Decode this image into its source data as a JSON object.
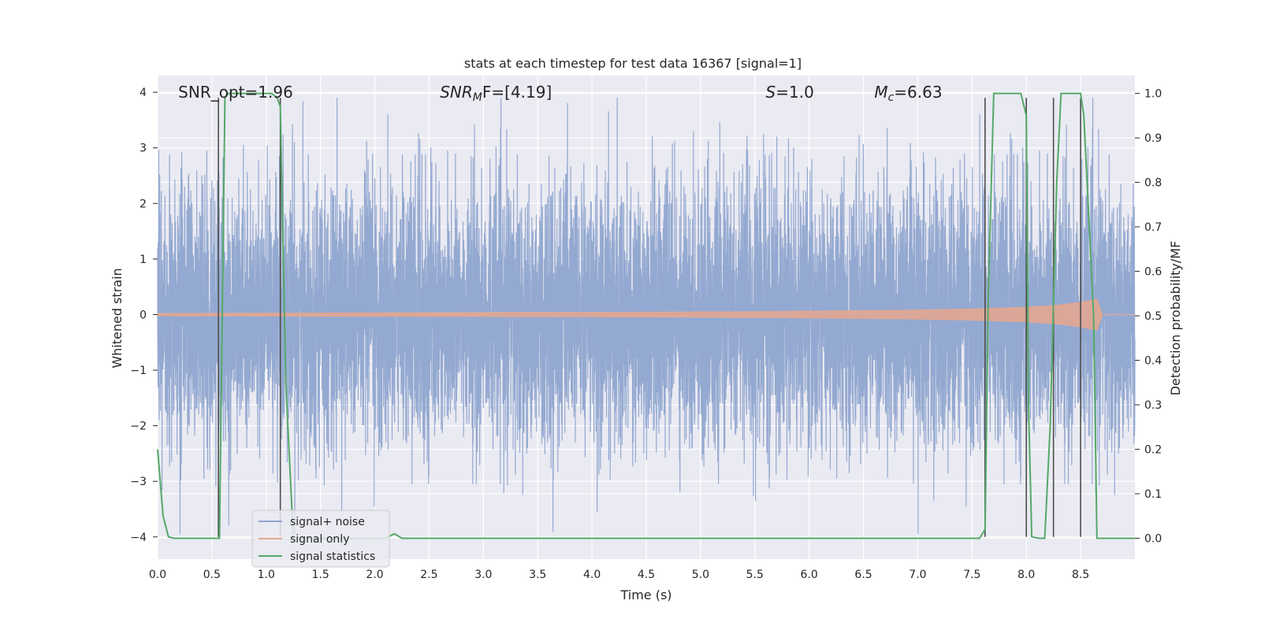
{
  "chart_data": {
    "type": "line",
    "title": "stats at each timestep for test data 16367 [signal=1]",
    "xlabel": "Time (s)",
    "ylabel": "Whitened strain",
    "ylabel_right": "Detection probability/MF",
    "xlim": [
      0.0,
      9.0
    ],
    "ylim": [
      -4.4,
      4.3
    ],
    "ylim_right": [
      -0.047,
      1.04
    ],
    "x_ticks": [
      0.0,
      0.5,
      1.0,
      1.5,
      2.0,
      2.5,
      3.0,
      3.5,
      4.0,
      4.5,
      5.0,
      5.5,
      6.0,
      6.5,
      7.0,
      7.5,
      8.0,
      8.5
    ],
    "x_tick_labels": [
      "0.0",
      "0.5",
      "1.0",
      "1.5",
      "2.0",
      "2.5",
      "3.0",
      "3.5",
      "4.0",
      "4.5",
      "5.0",
      "5.5",
      "6.0",
      "6.5",
      "7.0",
      "7.5",
      "8.0",
      "8.5"
    ],
    "y_ticks": [
      -4,
      -3,
      -2,
      -1,
      0,
      1,
      2,
      3,
      4
    ],
    "y_tick_labels": [
      "−4",
      "−3",
      "−2",
      "−1",
      "0",
      "1",
      "2",
      "3",
      "4"
    ],
    "y_ticks_right": [
      0.0,
      0.1,
      0.2,
      0.3,
      0.4,
      0.5,
      0.6,
      0.7,
      0.8,
      0.9,
      1.0
    ],
    "y_tick_labels_right": [
      "0.0",
      "0.1",
      "0.2",
      "0.3",
      "0.4",
      "0.5",
      "0.6",
      "0.7",
      "0.8",
      "0.9",
      "1.0"
    ],
    "grid": true,
    "legend_position": "lower-left",
    "annotations": [
      {
        "x": 0.19,
        "y": 4.0,
        "text": "SNR_opt=1.96"
      },
      {
        "x": 2.6,
        "y": 4.0,
        "text_main": "SNR",
        "text_sub": "M",
        "text_rest": "F=[4.19]"
      },
      {
        "x": 5.6,
        "y": 4.0,
        "text_main": "S",
        "text_sub": "",
        "text_rest": "=1.0"
      },
      {
        "x": 6.6,
        "y": 4.0,
        "text_main": "M",
        "text_sub": "c",
        "text_rest": "=6.63"
      }
    ],
    "series": [
      {
        "name": "signal+ noise",
        "color": "#8fa5cf",
        "style": "dense-noise",
        "sample_rate_hz": 120,
        "amplitude_std": 1.15,
        "y_range": [
          -3.95,
          3.9
        ]
      },
      {
        "name": "signal only",
        "color": "#e6a78e",
        "style": "chirp-envelope",
        "x": [
          0.0,
          2.0,
          4.0,
          5.5,
          6.5,
          7.0,
          7.5,
          8.0,
          8.3,
          8.5,
          8.65,
          8.7,
          9.0
        ],
        "envelope": [
          0.02,
          0.03,
          0.04,
          0.05,
          0.07,
          0.08,
          0.1,
          0.13,
          0.17,
          0.22,
          0.28,
          0.0,
          0.0
        ]
      },
      {
        "name": "signal statistics",
        "color": "#55a868",
        "axis": "right",
        "x": [
          0.0,
          0.05,
          0.1,
          0.15,
          0.5,
          0.55,
          0.57,
          0.62,
          0.65,
          1.0,
          1.05,
          1.1,
          1.13,
          1.18,
          1.25,
          1.35,
          1.4,
          2.1,
          2.18,
          2.25,
          7.5,
          7.57,
          7.62,
          7.65,
          7.7,
          7.95,
          8.0,
          8.02,
          8.05,
          8.12,
          8.17,
          8.22,
          8.28,
          8.32,
          8.38,
          8.5,
          8.53,
          8.62,
          8.65,
          8.7,
          9.0
        ],
        "y": [
          0.2,
          0.05,
          0.003,
          0.0,
          0.0,
          0.0,
          0.0,
          0.99,
          1.0,
          1.0,
          1.0,
          0.99,
          0.97,
          0.35,
          0.0,
          0.0,
          0.0,
          0.0,
          0.01,
          0.0,
          0.0,
          0.0,
          0.02,
          0.55,
          1.0,
          1.0,
          0.95,
          0.3,
          0.003,
          0.0,
          0.0,
          0.25,
          0.8,
          1.0,
          1.0,
          1.0,
          0.95,
          0.5,
          0.0,
          0.0,
          0.0
        ]
      }
    ],
    "vertical_markers": [
      0.56,
      1.13,
      7.62,
      8.0,
      8.25,
      8.5
    ]
  }
}
